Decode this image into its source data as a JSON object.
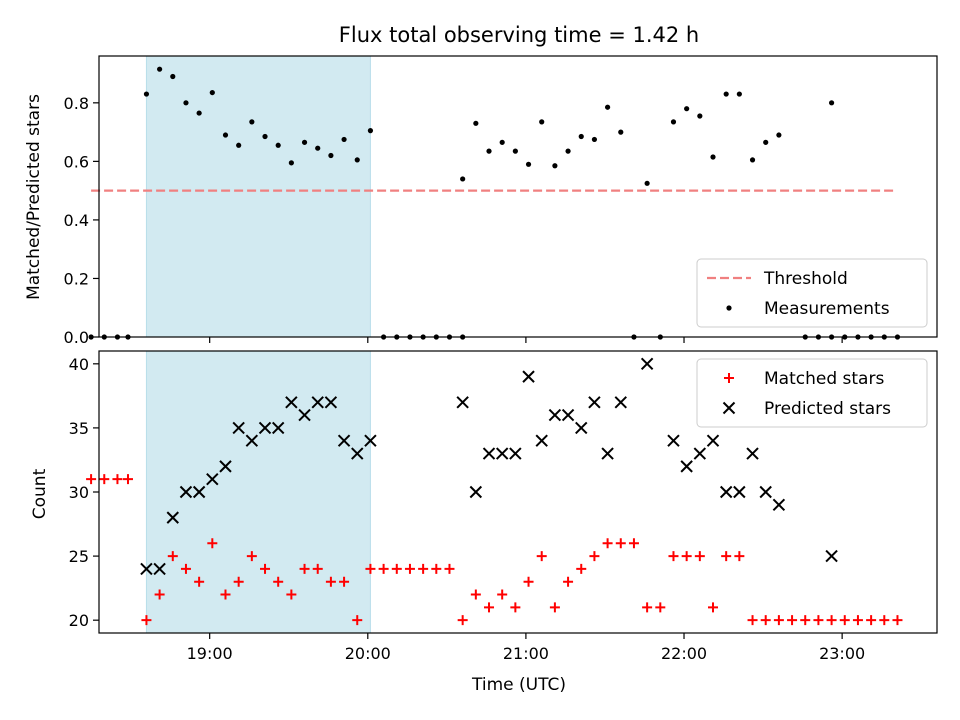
{
  "chart_data": {
    "title": "Flux total observing time = 1.42 h",
    "xlabel": "Time (UTC)",
    "x_ticks": [
      "19:00",
      "20:00",
      "21:00",
      "22:00",
      "23:00"
    ],
    "xlim": [
      "18:18",
      "23:36"
    ],
    "shaded_region": {
      "x_start": "18:36",
      "x_end": "20:01",
      "color": "#add8e6"
    },
    "panels": [
      {
        "type": "scatter",
        "ylabel": "Matched/Predicted stars",
        "ylim": [
          0,
          0.96
        ],
        "y_ticks": [
          "0.0",
          "0.2",
          "0.4",
          "0.6",
          "0.8"
        ],
        "legend_position": "lower-right",
        "threshold": {
          "name": "Threshold",
          "value": 0.5,
          "x_start": "18:15",
          "x_end": "23:20",
          "color": "#f08080",
          "style": "dashed"
        },
        "series": [
          {
            "name": "Measurements",
            "color": "#000000",
            "marker": "dot",
            "points": [
              [
                "18:15",
                0
              ],
              [
                "18:20",
                0
              ],
              [
                "18:25",
                0
              ],
              [
                "18:29",
                0
              ],
              [
                "18:36",
                0.83
              ],
              [
                "18:41",
                0.915
              ],
              [
                "18:46",
                0.89
              ],
              [
                "18:51",
                0.8
              ],
              [
                "18:56",
                0.765
              ],
              [
                "19:01",
                0.835
              ],
              [
                "19:06",
                0.69
              ],
              [
                "19:11",
                0.655
              ],
              [
                "19:16",
                0.735
              ],
              [
                "19:21",
                0.685
              ],
              [
                "19:26",
                0.655
              ],
              [
                "19:31",
                0.595
              ],
              [
                "19:36",
                0.665
              ],
              [
                "19:41",
                0.645
              ],
              [
                "19:46",
                0.62
              ],
              [
                "19:51",
                0.675
              ],
              [
                "19:56",
                0.605
              ],
              [
                "20:01",
                0.705
              ],
              [
                "20:06",
                0
              ],
              [
                "20:11",
                0
              ],
              [
                "20:16",
                0
              ],
              [
                "20:21",
                0
              ],
              [
                "20:26",
                0
              ],
              [
                "20:31",
                0
              ],
              [
                "20:36",
                0
              ],
              [
                "20:36",
                0.54
              ],
              [
                "20:41",
                0.73
              ],
              [
                "20:46",
                0.635
              ],
              [
                "20:51",
                0.665
              ],
              [
                "20:56",
                0.635
              ],
              [
                "21:01",
                0.59
              ],
              [
                "21:06",
                0.735
              ],
              [
                "21:11",
                0.585
              ],
              [
                "21:16",
                0.635
              ],
              [
                "21:21",
                0.685
              ],
              [
                "21:26",
                0.675
              ],
              [
                "21:31",
                0.785
              ],
              [
                "21:36",
                0.7
              ],
              [
                "21:41",
                0
              ],
              [
                "21:46",
                0.525
              ],
              [
                "21:51",
                0
              ],
              [
                "21:56",
                0.735
              ],
              [
                "22:01",
                0.78
              ],
              [
                "22:06",
                0.755
              ],
              [
                "22:11",
                0.615
              ],
              [
                "22:16",
                0.83
              ],
              [
                "22:21",
                0.83
              ],
              [
                "22:26",
                0.605
              ],
              [
                "22:31",
                0.665
              ],
              [
                "22:36",
                0.69
              ],
              [
                "22:46",
                0
              ],
              [
                "22:51",
                0
              ],
              [
                "22:56",
                0.8
              ],
              [
                "22:56",
                0
              ],
              [
                "23:01",
                0
              ],
              [
                "23:06",
                0
              ],
              [
                "23:11",
                0
              ],
              [
                "23:16",
                0
              ],
              [
                "23:21",
                0
              ]
            ]
          }
        ]
      },
      {
        "type": "scatter",
        "ylabel": "Count",
        "ylim": [
          19,
          41
        ],
        "y_ticks": [
          "20",
          "25",
          "30",
          "35",
          "40"
        ],
        "legend_position": "upper-right",
        "series": [
          {
            "name": "Matched stars",
            "color": "#ff0000",
            "marker": "plus",
            "points": [
              [
                "18:15",
                31
              ],
              [
                "18:20",
                31
              ],
              [
                "18:25",
                31
              ],
              [
                "18:29",
                31
              ],
              [
                "18:36",
                20
              ],
              [
                "18:41",
                22
              ],
              [
                "18:46",
                25
              ],
              [
                "18:51",
                24
              ],
              [
                "18:56",
                23
              ],
              [
                "19:01",
                26
              ],
              [
                "19:06",
                22
              ],
              [
                "19:11",
                23
              ],
              [
                "19:16",
                25
              ],
              [
                "19:21",
                24
              ],
              [
                "19:26",
                23
              ],
              [
                "19:31",
                22
              ],
              [
                "19:36",
                24
              ],
              [
                "19:41",
                24
              ],
              [
                "19:46",
                23
              ],
              [
                "19:51",
                23
              ],
              [
                "19:56",
                20
              ],
              [
                "20:01",
                24
              ],
              [
                "20:06",
                24
              ],
              [
                "20:11",
                24
              ],
              [
                "20:16",
                24
              ],
              [
                "20:21",
                24
              ],
              [
                "20:26",
                24
              ],
              [
                "20:31",
                24
              ],
              [
                "20:36",
                20
              ],
              [
                "20:41",
                22
              ],
              [
                "20:46",
                21
              ],
              [
                "20:51",
                22
              ],
              [
                "20:56",
                21
              ],
              [
                "21:01",
                23
              ],
              [
                "21:06",
                25
              ],
              [
                "21:11",
                21
              ],
              [
                "21:16",
                23
              ],
              [
                "21:21",
                24
              ],
              [
                "21:26",
                25
              ],
              [
                "21:31",
                26
              ],
              [
                "21:36",
                26
              ],
              [
                "21:41",
                26
              ],
              [
                "21:46",
                21
              ],
              [
                "21:51",
                21
              ],
              [
                "21:56",
                25
              ],
              [
                "22:01",
                25
              ],
              [
                "22:06",
                25
              ],
              [
                "22:11",
                21
              ],
              [
                "22:16",
                25
              ],
              [
                "22:21",
                25
              ],
              [
                "22:26",
                20
              ],
              [
                "22:31",
                20
              ],
              [
                "22:36",
                20
              ],
              [
                "22:41",
                20
              ],
              [
                "22:46",
                20
              ],
              [
                "22:51",
                20
              ],
              [
                "22:56",
                20
              ],
              [
                "23:01",
                20
              ],
              [
                "23:06",
                20
              ],
              [
                "23:11",
                20
              ],
              [
                "23:16",
                20
              ],
              [
                "23:21",
                20
              ]
            ]
          },
          {
            "name": "Predicted stars",
            "color": "#000000",
            "marker": "x",
            "points": [
              [
                "18:36",
                24
              ],
              [
                "18:41",
                24
              ],
              [
                "18:46",
                28
              ],
              [
                "18:51",
                30
              ],
              [
                "18:56",
                30
              ],
              [
                "19:01",
                31
              ],
              [
                "19:06",
                32
              ],
              [
                "19:11",
                35
              ],
              [
                "19:16",
                34
              ],
              [
                "19:21",
                35
              ],
              [
                "19:26",
                35
              ],
              [
                "19:31",
                37
              ],
              [
                "19:36",
                36
              ],
              [
                "19:41",
                37
              ],
              [
                "19:46",
                37
              ],
              [
                "19:51",
                34
              ],
              [
                "19:56",
                33
              ],
              [
                "20:01",
                34
              ],
              [
                "20:36",
                37
              ],
              [
                "20:41",
                30
              ],
              [
                "20:46",
                33
              ],
              [
                "20:51",
                33
              ],
              [
                "20:56",
                33
              ],
              [
                "21:01",
                39
              ],
              [
                "21:06",
                34
              ],
              [
                "21:11",
                36
              ],
              [
                "21:16",
                36
              ],
              [
                "21:21",
                35
              ],
              [
                "21:26",
                37
              ],
              [
                "21:31",
                33
              ],
              [
                "21:36",
                37
              ],
              [
                "21:46",
                40
              ],
              [
                "21:56",
                34
              ],
              [
                "22:01",
                32
              ],
              [
                "22:06",
                33
              ],
              [
                "22:11",
                34
              ],
              [
                "22:16",
                30
              ],
              [
                "22:21",
                30
              ],
              [
                "22:26",
                33
              ],
              [
                "22:31",
                30
              ],
              [
                "22:36",
                29
              ],
              [
                "22:56",
                25
              ]
            ]
          }
        ]
      }
    ]
  }
}
